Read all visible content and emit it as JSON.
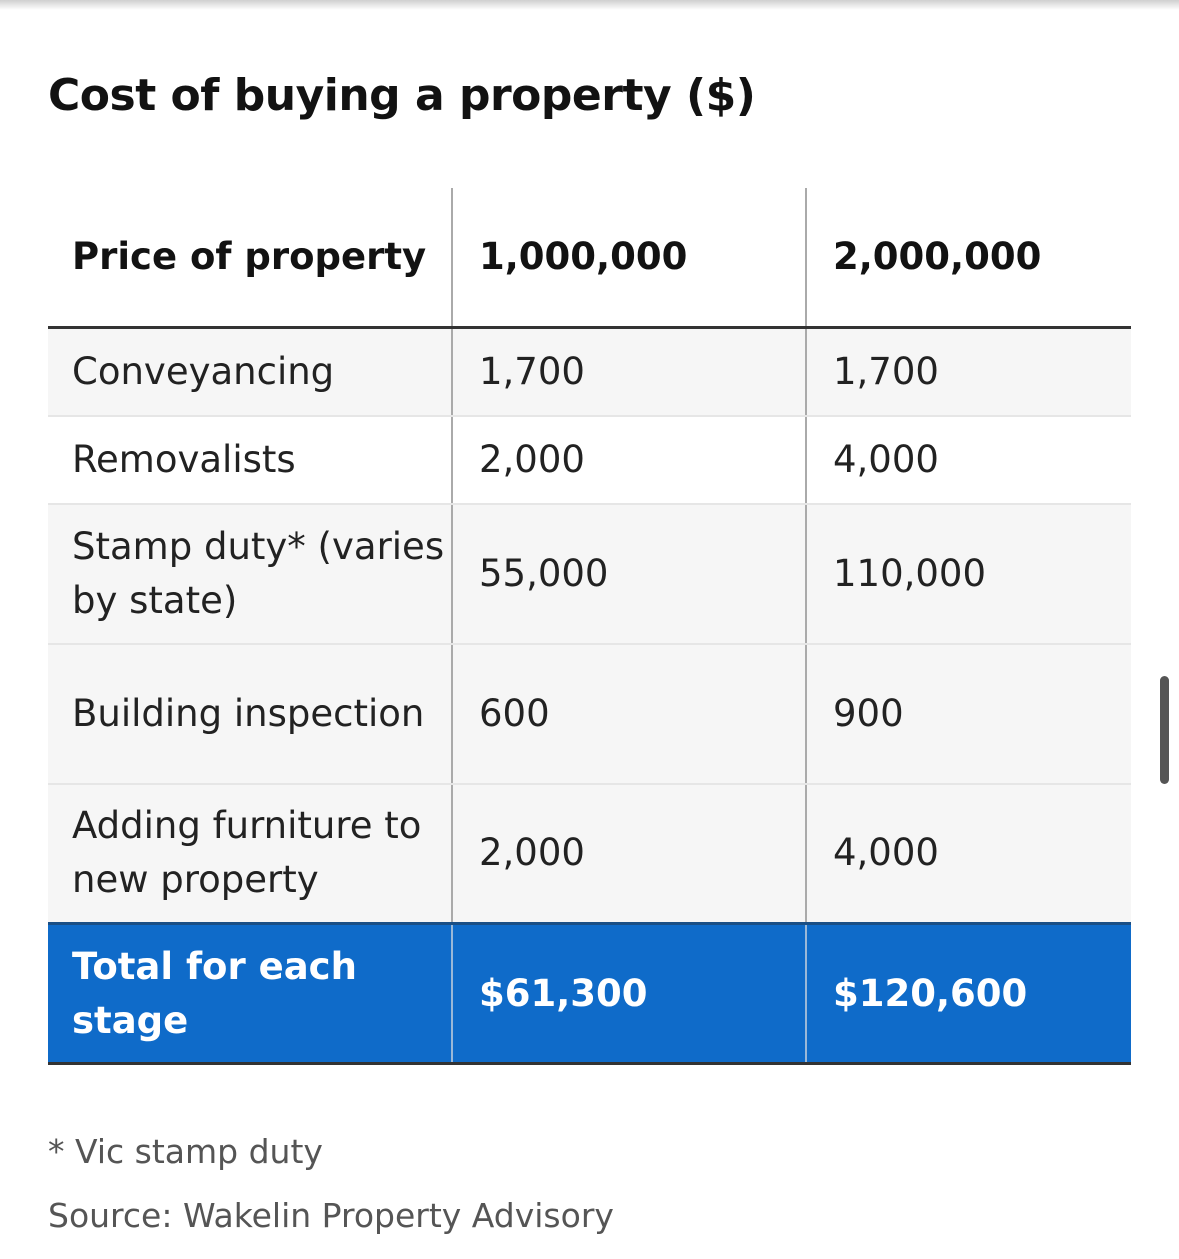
{
  "chart_data": {
    "type": "table",
    "title": "Cost of buying a property ($)",
    "header": [
      "Price of property",
      "1,000,000",
      "2,000,000"
    ],
    "rows": [
      {
        "label": "Conveyancing",
        "values": [
          "1,700",
          "1,700"
        ]
      },
      {
        "label": "Removalists",
        "values": [
          "2,000",
          "4,000"
        ]
      },
      {
        "label": "Stamp duty* (varies by state)",
        "values": [
          "55,000",
          "110,000"
        ]
      },
      {
        "label": "Building inspection",
        "values": [
          "600",
          "900"
        ]
      },
      {
        "label": "Adding furniture to new property",
        "values": [
          "2,000",
          "4,000"
        ]
      }
    ],
    "total": {
      "label": "Total for each stage",
      "values": [
        "$61,300",
        "$120,600"
      ]
    },
    "footnote": "* Vic stamp duty",
    "source": "Source: Wakelin Property Advisory"
  },
  "colors": {
    "total_row_bg": "#0f6bc9",
    "odd_row_bg": "#f6f6f6"
  }
}
